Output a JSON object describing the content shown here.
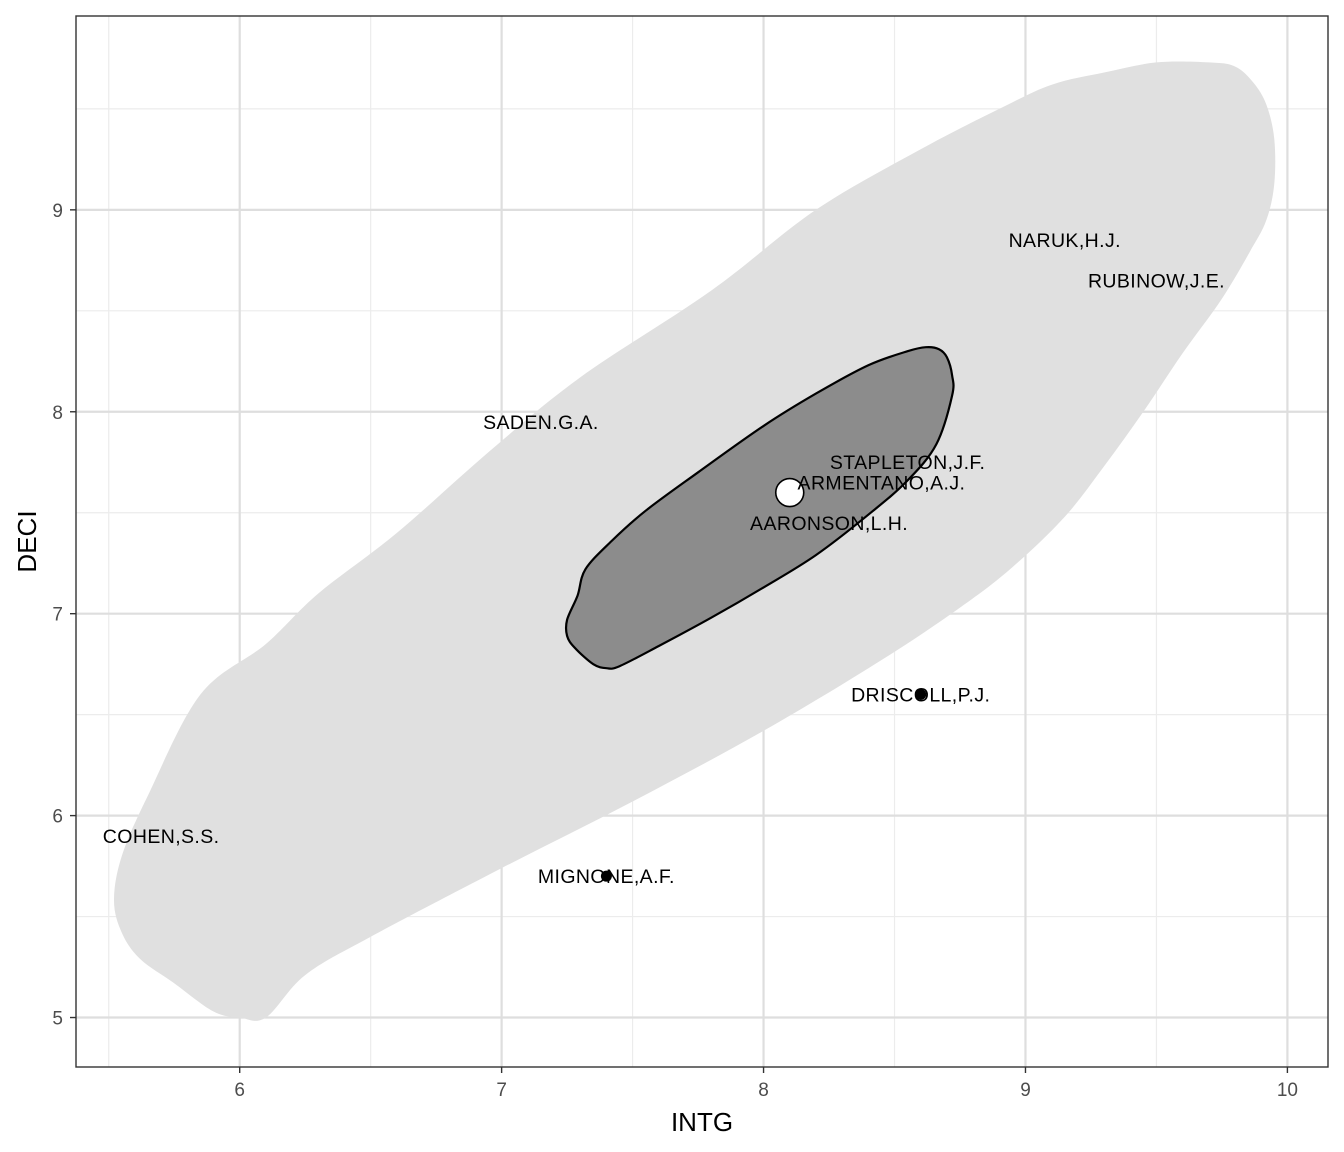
{
  "chart_data": {
    "type": "scatter",
    "xlabel": "INTG",
    "ylabel": "DECI",
    "xlim": [
      5.375,
      10.155
    ],
    "ylim": [
      4.755,
      9.96
    ],
    "x_ticks": [
      6,
      7,
      8,
      9,
      10
    ],
    "y_ticks": [
      5,
      6,
      7,
      8,
      9
    ],
    "x_tick_labels": [
      "6",
      "7",
      "8",
      "9",
      "10"
    ],
    "y_tick_labels": [
      "5",
      "6",
      "7",
      "8",
      "9"
    ],
    "x_minor": [
      5.5,
      6.5,
      7.5,
      8.5,
      9.5
    ],
    "y_minor": [
      5.5,
      6.5,
      7.5,
      8.5,
      9.5
    ],
    "grid": true,
    "center": {
      "x": 8.1,
      "y": 7.6
    },
    "points": [
      {
        "label": "MIGNONE,A.F.",
        "x": 7.4,
        "y": 5.7,
        "outside": true
      },
      {
        "label": "DRISCOLL,P.J.",
        "x": 8.6,
        "y": 6.6,
        "outside": true
      },
      {
        "label": "COHEN,S.S.",
        "x": 5.7,
        "y": 5.9,
        "outside": false
      },
      {
        "label": "SADEN.G.A.",
        "x": 7.15,
        "y": 7.95,
        "outside": false
      },
      {
        "label": "NARUK,H.J.",
        "x": 9.15,
        "y": 8.85,
        "outside": false
      },
      {
        "label": "RUBINOW,J.E.",
        "x": 9.5,
        "y": 8.65,
        "outside": false
      },
      {
        "label": "STAPLETON,J.F.",
        "x": 8.55,
        "y": 7.75,
        "outside": false
      },
      {
        "label": "ARMENTANO,A.J.",
        "x": 8.45,
        "y": 7.65,
        "outside": false
      },
      {
        "label": "AARONSON,L.H.",
        "x": 8.25,
        "y": 7.45,
        "outside": false
      }
    ],
    "outer_contour": [
      [
        9.7,
        9.73
      ],
      [
        9.8,
        9.71
      ],
      [
        9.87,
        9.63
      ],
      [
        9.92,
        9.52
      ],
      [
        9.95,
        9.35
      ],
      [
        9.95,
        9.13
      ],
      [
        9.92,
        8.95
      ],
      [
        9.86,
        8.8
      ],
      [
        9.75,
        8.56
      ],
      [
        9.6,
        8.29
      ],
      [
        9.45,
        8.0
      ],
      [
        9.3,
        7.73
      ],
      [
        9.15,
        7.48
      ],
      [
        8.95,
        7.23
      ],
      [
        8.75,
        7.03
      ],
      [
        8.45,
        6.77
      ],
      [
        8.0,
        6.42
      ],
      [
        7.5,
        6.07
      ],
      [
        7.0,
        5.74
      ],
      [
        6.5,
        5.4
      ],
      [
        6.25,
        5.21
      ],
      [
        6.1,
        5.0
      ],
      [
        6.0,
        5.0
      ],
      [
        5.9,
        5.03
      ],
      [
        5.75,
        5.17
      ],
      [
        5.62,
        5.29
      ],
      [
        5.55,
        5.42
      ],
      [
        5.52,
        5.58
      ],
      [
        5.55,
        5.8
      ],
      [
        5.65,
        6.1
      ],
      [
        5.85,
        6.6
      ],
      [
        6.1,
        6.85
      ],
      [
        6.3,
        7.1
      ],
      [
        6.6,
        7.4
      ],
      [
        6.95,
        7.8
      ],
      [
        7.3,
        8.17
      ],
      [
        7.8,
        8.6
      ],
      [
        8.2,
        9.0
      ],
      [
        8.6,
        9.3
      ],
      [
        8.9,
        9.5
      ],
      [
        9.1,
        9.62
      ],
      [
        9.3,
        9.68
      ],
      [
        9.5,
        9.73
      ]
    ],
    "inner_contour": [
      [
        8.67,
        8.31
      ],
      [
        8.7,
        8.27
      ],
      [
        8.72,
        8.18
      ],
      [
        8.72,
        8.08
      ],
      [
        8.66,
        7.84
      ],
      [
        8.55,
        7.66
      ],
      [
        8.4,
        7.49
      ],
      [
        8.2,
        7.29
      ],
      [
        8.0,
        7.13
      ],
      [
        7.8,
        6.98
      ],
      [
        7.6,
        6.84
      ],
      [
        7.45,
        6.74
      ],
      [
        7.4,
        6.73
      ],
      [
        7.35,
        6.75
      ],
      [
        7.28,
        6.83
      ],
      [
        7.25,
        6.89
      ],
      [
        7.25,
        6.97
      ],
      [
        7.29,
        7.09
      ],
      [
        7.32,
        7.22
      ],
      [
        7.42,
        7.36
      ],
      [
        7.55,
        7.51
      ],
      [
        7.75,
        7.7
      ],
      [
        8.0,
        7.93
      ],
      [
        8.2,
        8.09
      ],
      [
        8.4,
        8.23
      ],
      [
        8.55,
        8.3
      ],
      [
        8.62,
        8.32
      ]
    ],
    "colors": {
      "outer_fill": "#e0e0e0",
      "inner_fill": "#8c8c8c",
      "inner_stroke": "#000000",
      "major_grid": "#dedede",
      "minor_grid": "#ececec",
      "panel_border": "#333333",
      "point": "#000000",
      "center_fill": "#ffffff"
    }
  }
}
